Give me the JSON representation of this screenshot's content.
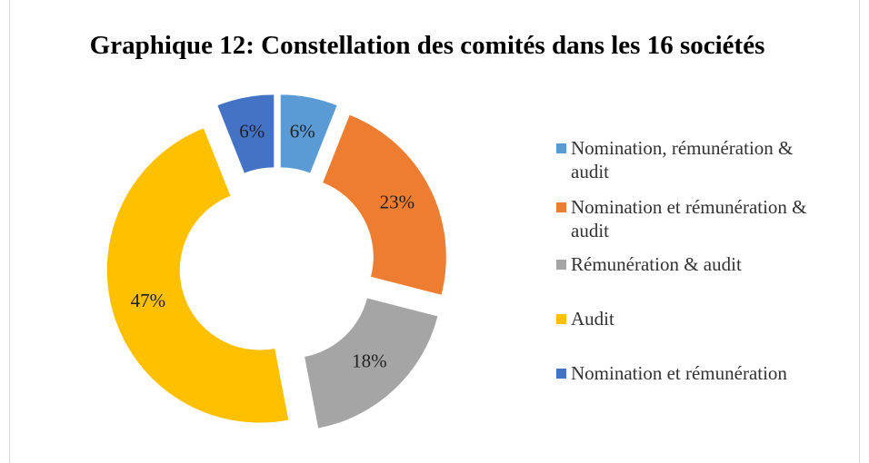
{
  "chart_data": {
    "type": "donut",
    "title": "Graphique 12: Constellation des comités dans les 16 sociétés",
    "categories": [
      "Nomination, rémunération & audit",
      "Nomination et rémunération & audit",
      "Rémunération & audit",
      "Audit",
      "Nomination et rémunération"
    ],
    "values": [
      6,
      23,
      18,
      47,
      6
    ],
    "value_labels": [
      "6%",
      "23%",
      "18%",
      "47%",
      "6%"
    ],
    "colors": [
      "#5b9bd5",
      "#ed7d31",
      "#a5a5a5",
      "#ffc000",
      "#4472c4"
    ],
    "legend": "right"
  }
}
